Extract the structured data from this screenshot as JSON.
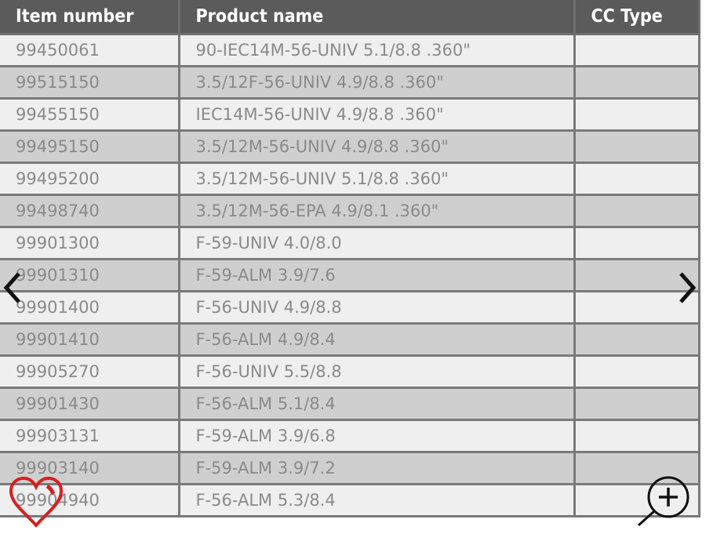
{
  "table": {
    "headers": [
      "Item number",
      "Product name",
      "CC Type"
    ],
    "rows": [
      [
        "99450061",
        "90-IEC14M-56-UNIV 5.1/8.8 .360\"",
        ""
      ],
      [
        "99515150",
        "3.5/12F-56-UNIV 4.9/8.8 .360\"",
        ""
      ],
      [
        "99455150",
        "IEC14M-56-UNIV 4.9/8.8 .360\"",
        ""
      ],
      [
        "99495150",
        "3.5/12M-56-UNIV 4.9/8.8 .360\"",
        ""
      ],
      [
        "99495200",
        "3.5/12M-56-UNIV 5.1/8.8 .360\"",
        ""
      ],
      [
        "99498740",
        "3.5/12M-56-EPA 4.9/8.1 .360\"",
        ""
      ],
      [
        "99901300",
        "F-59-UNIV 4.0/8.0",
        ""
      ],
      [
        "99901310",
        "F-59-ALM 3.9/7.6",
        ""
      ],
      [
        "99901400",
        "F-56-UNIV 4.9/8.8",
        ""
      ],
      [
        "99901410",
        "F-56-ALM 4.9/8.4",
        ""
      ],
      [
        "99905270",
        "F-56-UNIV 5.5/8.8",
        ""
      ],
      [
        "99901430",
        "F-56-ALM 5.1/8.4",
        ""
      ],
      [
        "99903131",
        "F-59-ALM 3.9/6.8",
        ""
      ],
      [
        "99903140",
        "F-59-ALM 3.9/7.2",
        ""
      ],
      [
        "99904940",
        "F-56-ALM 5.3/8.4",
        ""
      ]
    ]
  },
  "overlay": {
    "prev_icon": "chevron-left-icon",
    "next_icon": "chevron-right-icon",
    "favorite_icon": "heart-outline-icon",
    "zoom_icon": "zoom-in-icon",
    "favorite_color": "#d42020"
  }
}
